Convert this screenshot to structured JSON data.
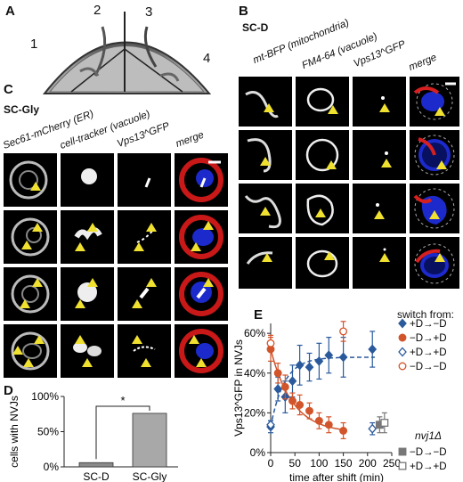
{
  "panels": {
    "A": {
      "letter": "A",
      "plate_sections": [
        "1",
        "2",
        "3",
        "4"
      ]
    },
    "B": {
      "letter": "B",
      "condition": "SC-D",
      "columns": [
        "mt-BFP (mitochondria)",
        "FM4-64 (vacuole)",
        "Vps13^GFP",
        "merge"
      ]
    },
    "C": {
      "letter": "C",
      "condition": "SC-Gly",
      "columns": [
        "Sec61-mCherry (ER)",
        "cell-tracker (vacuole)",
        "Vps13^GFP",
        "merge"
      ]
    },
    "D": {
      "letter": "D",
      "ylabel": "cells with NVJs",
      "significance": "*",
      "chart_data": {
        "type": "bar",
        "categories": [
          "SC-D",
          "SC-Gly"
        ],
        "values": [
          6,
          76
        ],
        "yticks": [
          "0%",
          "50%",
          "100%"
        ],
        "ylim": [
          0,
          100
        ]
      }
    },
    "E": {
      "letter": "E",
      "legend_title": "switch from:",
      "legend_group2_title": "nvj1Δ",
      "chart_data": {
        "type": "scatter",
        "xlabel": "time after shift (min)",
        "ylabel": "Vps13^GFP in NVJs",
        "xlim": [
          0,
          250
        ],
        "ylim": [
          0,
          65
        ],
        "xticks": [
          "0",
          "50",
          "100",
          "150",
          "200",
          "250"
        ],
        "yticks": [
          "0%",
          "20%",
          "40%",
          "60%"
        ],
        "series": [
          {
            "name": "+D→−D",
            "color": "#2a5a9c",
            "marker": "diamond-filled",
            "x": [
              0,
              15,
              30,
              45,
              60,
              80,
              100,
              120,
              150,
              210
            ],
            "y": [
              13,
              32,
              28,
              36,
              44,
              43,
              46,
              49,
              48,
              52
            ],
            "err": [
              3,
              6,
              8,
              8,
              10,
              7,
              9,
              9,
              10,
              9
            ]
          },
          {
            "name": "−D→+D",
            "color": "#d2542a",
            "marker": "circle-filled",
            "x": [
              0,
              15,
              30,
              45,
              60,
              80,
              100,
              120,
              150
            ],
            "y": [
              52,
              40,
              33,
              26,
              24,
              21,
              16,
              14,
              11
            ],
            "err": [
              6,
              5,
              6,
              4,
              5,
              4,
              4,
              4,
              4
            ]
          },
          {
            "name": "+D→+D",
            "color": "#2a5a9c",
            "marker": "diamond-open",
            "x": [
              0,
              210
            ],
            "y": [
              14,
              12
            ],
            "err": [
              2,
              3
            ]
          },
          {
            "name": "−D→−D",
            "color": "#d2542a",
            "marker": "circle-open",
            "x": [
              0,
              150
            ],
            "y": [
              55,
              61
            ],
            "err": [
              4,
              5
            ]
          },
          {
            "name": "−D→−D",
            "group": "nvj1Δ",
            "color": "#777777",
            "marker": "square-filled",
            "x": [
              225
            ],
            "y": [
              14
            ],
            "err": [
              4
            ]
          },
          {
            "name": "+D→+D",
            "group": "nvj1Δ",
            "color": "#777777",
            "marker": "square-open",
            "x": [
              235
            ],
            "y": [
              15
            ],
            "err": [
              5
            ]
          }
        ]
      }
    }
  }
}
